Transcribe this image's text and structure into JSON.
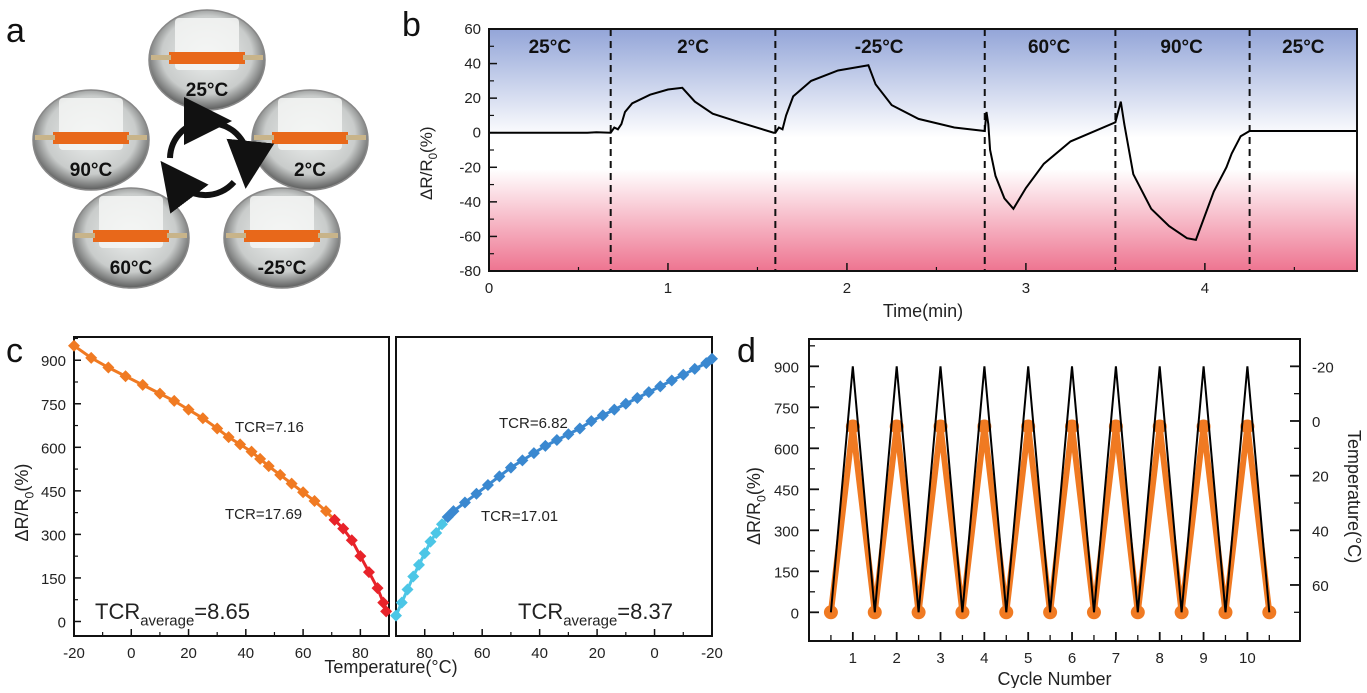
{
  "figure": {
    "panels": [
      "a",
      "b",
      "c",
      "d"
    ]
  },
  "panel_a": {
    "letter": "a",
    "photos": [
      {
        "label": "25°C",
        "position": "top"
      },
      {
        "label": "2°C",
        "position": "right"
      },
      {
        "label": "-25°C",
        "position": "bottom-right"
      },
      {
        "label": "60°C",
        "position": "bottom-left"
      },
      {
        "label": "90°C",
        "position": "left"
      }
    ],
    "cycle_icon": "cycle-arrows-icon",
    "colors": {
      "sensor_strip": "#e8681a"
    }
  },
  "chart_data": [
    {
      "id": "b",
      "letter": "b",
      "type": "line",
      "title": "",
      "xlabel": "Time(min)",
      "ylabel": "ΔR/R0(%)",
      "ylabel_main": "ΔR/R",
      "ylabel_sub": "0",
      "ylabel_tail": "(%)",
      "xlim": [
        0,
        4.85
      ],
      "ylim": [
        -80,
        60
      ],
      "xticks": [
        "0",
        "1",
        "2",
        "3",
        "4"
      ],
      "xtick_values": [
        0,
        1,
        2,
        3,
        4
      ],
      "yticks": [
        "60",
        "40",
        "20",
        "0",
        "-20",
        "-40",
        "-60",
        "-80"
      ],
      "ytick_values": [
        60,
        40,
        20,
        0,
        -20,
        -40,
        -60,
        -80
      ],
      "grid": false,
      "background_gradient": {
        "top": "#93a5d8",
        "middle": "#ffffff",
        "bottom": "#ee7490"
      },
      "segment_boundaries": [
        0.68,
        1.6,
        2.77,
        3.5,
        4.25
      ],
      "segments": [
        {
          "label": "25°C",
          "x_center": 0.34
        },
        {
          "label": "2°C",
          "x_center": 1.14
        },
        {
          "label": "-25°C",
          "x_center": 2.18
        },
        {
          "label": "60°C",
          "x_center": 3.13
        },
        {
          "label": "90°C",
          "x_center": 3.87
        },
        {
          "label": "25°C",
          "x_center": 4.55
        }
      ],
      "series": [
        {
          "name": "ΔR/R0",
          "color": "#000000",
          "x": [
            0,
            0.55,
            0.6,
            0.68,
            0.7,
            0.72,
            0.74,
            0.76,
            0.8,
            0.9,
            1.0,
            1.08,
            1.15,
            1.25,
            1.4,
            1.59,
            1.6,
            1.62,
            1.64,
            1.66,
            1.7,
            1.8,
            1.95,
            2.12,
            2.16,
            2.25,
            2.4,
            2.6,
            2.77,
            2.78,
            2.79,
            2.8,
            2.83,
            2.88,
            2.93,
            3.0,
            3.1,
            3.25,
            3.5,
            3.53,
            3.55,
            3.6,
            3.7,
            3.8,
            3.9,
            3.95,
            4.05,
            4.12,
            4.15,
            4.2,
            4.25,
            4.85
          ],
          "y": [
            0,
            0,
            0.3,
            0,
            3,
            2,
            5,
            12,
            17,
            22,
            25,
            26,
            18,
            11,
            6,
            0,
            0,
            3,
            2,
            10,
            21,
            30,
            36,
            39,
            28,
            16,
            8,
            3,
            1,
            12,
            5,
            -10,
            -25,
            -38,
            -44,
            -32,
            -18,
            -5,
            6,
            18,
            5,
            -24,
            -44,
            -54,
            -61,
            -62,
            -34,
            -20,
            -12,
            -2,
            1,
            1
          ]
        }
      ]
    },
    {
      "id": "c",
      "letter": "c",
      "type": "line",
      "title": "",
      "xlabel": "Temperature(°C)",
      "ylabel_main": "ΔR/R",
      "ylabel_sub": "0",
      "ylabel_tail": "(%)",
      "ylim": [
        -50,
        980
      ],
      "yticks": [
        "0",
        "150",
        "300",
        "450",
        "600",
        "750",
        "900"
      ],
      "ytick_values": [
        0,
        150,
        300,
        450,
        600,
        750,
        900
      ],
      "grid": false,
      "subplots": [
        {
          "name": "heating",
          "xlim": [
            -20,
            90
          ],
          "xticks": [
            "-20",
            "0",
            "20",
            "40",
            "60",
            "80"
          ],
          "xtick_values": [
            -20,
            0,
            20,
            40,
            60,
            80
          ],
          "annotation_main": "TCR",
          "annotation_sub": "average",
          "annotation_tail": "=8.65",
          "series": [
            {
              "name": "TCR=7.16",
              "label": "TCR=7.16",
              "color": "#f07a22",
              "x": [
                -20,
                -14,
                -8,
                -2,
                4,
                10,
                15,
                20,
                25,
                30,
                34,
                38,
                42,
                45,
                48,
                52,
                56,
                60,
                64,
                68,
                71
              ],
              "y": [
                950,
                908,
                875,
                845,
                815,
                785,
                760,
                730,
                700,
                665,
                635,
                610,
                585,
                560,
                535,
                505,
                475,
                445,
                415,
                380,
                350
              ]
            },
            {
              "name": "TCR=17.69",
              "label": "TCR=17.69",
              "color": "#e8232a",
              "x": [
                71,
                74,
                77,
                80,
                83,
                86,
                88,
                89
              ],
              "y": [
                350,
                320,
                280,
                225,
                170,
                115,
                65,
                35
              ]
            }
          ]
        },
        {
          "name": "cooling",
          "xlim": [
            90,
            -20
          ],
          "xticks": [
            "80",
            "60",
            "40",
            "20",
            "0",
            "-20"
          ],
          "xtick_values": [
            80,
            60,
            40,
            20,
            0,
            -20
          ],
          "annotation_main": "TCR",
          "annotation_sub": "average",
          "annotation_tail": "=8.37",
          "series": [
            {
              "name": "TCR=17.01",
              "label": "TCR=17.01",
              "color": "#4cc6e6",
              "x": [
                90,
                88,
                86,
                84,
                82,
                80,
                78,
                76,
                74,
                72
              ],
              "y": [
                20,
                65,
                110,
                155,
                195,
                235,
                275,
                305,
                335,
                360
              ]
            },
            {
              "name": "TCR=6.82",
              "label": "TCR=6.82",
              "label_color": "#6a3fb0",
              "color": "#3a88d0",
              "x": [
                72,
                70,
                66,
                62,
                58,
                54,
                50,
                46,
                42,
                38,
                34,
                30,
                26,
                22,
                18,
                14,
                10,
                6,
                2,
                -2,
                -6,
                -10,
                -14,
                -18,
                -20
              ],
              "y": [
                360,
                380,
                410,
                440,
                470,
                500,
                530,
                555,
                580,
                605,
                625,
                645,
                665,
                690,
                710,
                730,
                750,
                770,
                790,
                810,
                830,
                850,
                870,
                890,
                905
              ]
            }
          ]
        }
      ]
    },
    {
      "id": "d",
      "letter": "d",
      "type": "line",
      "title": "",
      "xlabel": "Cycle Number",
      "ylabel_main": "ΔR/R",
      "ylabel_sub": "0",
      "ylabel_tail": "(%)",
      "y2label": "Temperature(°C)",
      "xlim": [
        0,
        11.2
      ],
      "ylim": [
        -105,
        1000
      ],
      "y2lim": [
        70,
        -20
      ],
      "xticks": [
        "1",
        "2",
        "3",
        "4",
        "5",
        "6",
        "7",
        "8",
        "9",
        "10"
      ],
      "xtick_values": [
        1,
        2,
        3,
        4,
        5,
        6,
        7,
        8,
        9,
        10
      ],
      "yticks": [
        "0",
        "150",
        "300",
        "450",
        "600",
        "750",
        "900"
      ],
      "ytick_values": [
        0,
        150,
        300,
        450,
        600,
        750,
        900
      ],
      "y2ticks": [
        "-20",
        "0",
        "20",
        "40",
        "60"
      ],
      "y2tick_values": [
        -20,
        0,
        20,
        40,
        60
      ],
      "grid": false,
      "series": [
        {
          "name": "ΔR/R0",
          "axis": "left",
          "color": "#000000",
          "x": [
            0.5,
            1,
            1.5,
            2,
            2.5,
            3,
            3.5,
            4,
            4.5,
            5,
            5.5,
            6,
            6.5,
            7,
            7.5,
            8,
            8.5,
            9,
            9.5,
            10,
            10.5
          ],
          "y": [
            0,
            900,
            0,
            900,
            0,
            900,
            0,
            900,
            0,
            900,
            0,
            900,
            0,
            900,
            0,
            900,
            0,
            900,
            0,
            900,
            0
          ]
        },
        {
          "name": "Temperature",
          "axis": "right",
          "color": "#f07a22",
          "marker": "circle",
          "x": [
            0.5,
            1,
            1.5,
            2,
            2.5,
            3,
            3.5,
            4,
            4.5,
            5,
            5.5,
            6,
            6.5,
            7,
            7.5,
            8,
            8.5,
            9,
            9.5,
            10,
            10.5
          ],
          "y": [
            70,
            2,
            70,
            2,
            70,
            2,
            70,
            2,
            70,
            2,
            70,
            2,
            70,
            2,
            70,
            2,
            70,
            2,
            70,
            2,
            70
          ]
        }
      ]
    }
  ]
}
